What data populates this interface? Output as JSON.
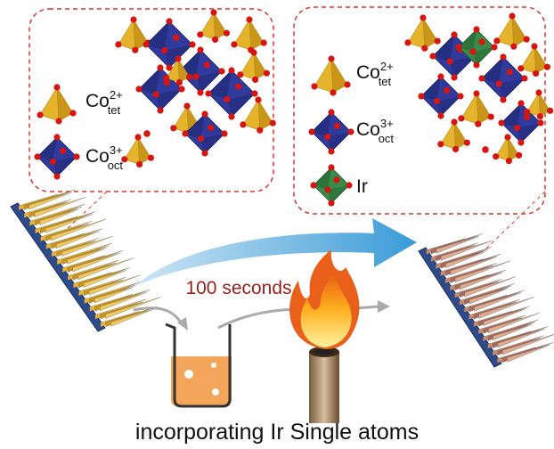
{
  "left_panel": {
    "labels": [
      {
        "element": "Co",
        "charge": "2+",
        "site": "tet"
      },
      {
        "element": "Co",
        "charge": "3+",
        "site": "oct"
      }
    ]
  },
  "right_panel": {
    "labels": [
      {
        "element": "Co",
        "charge": "2+",
        "site": "tet"
      },
      {
        "element": "Co",
        "charge": "3+",
        "site": "oct"
      },
      {
        "element": "Ir"
      }
    ]
  },
  "arrow_label": "100 seconds",
  "caption": "incorporating Ir Single atoms"
}
